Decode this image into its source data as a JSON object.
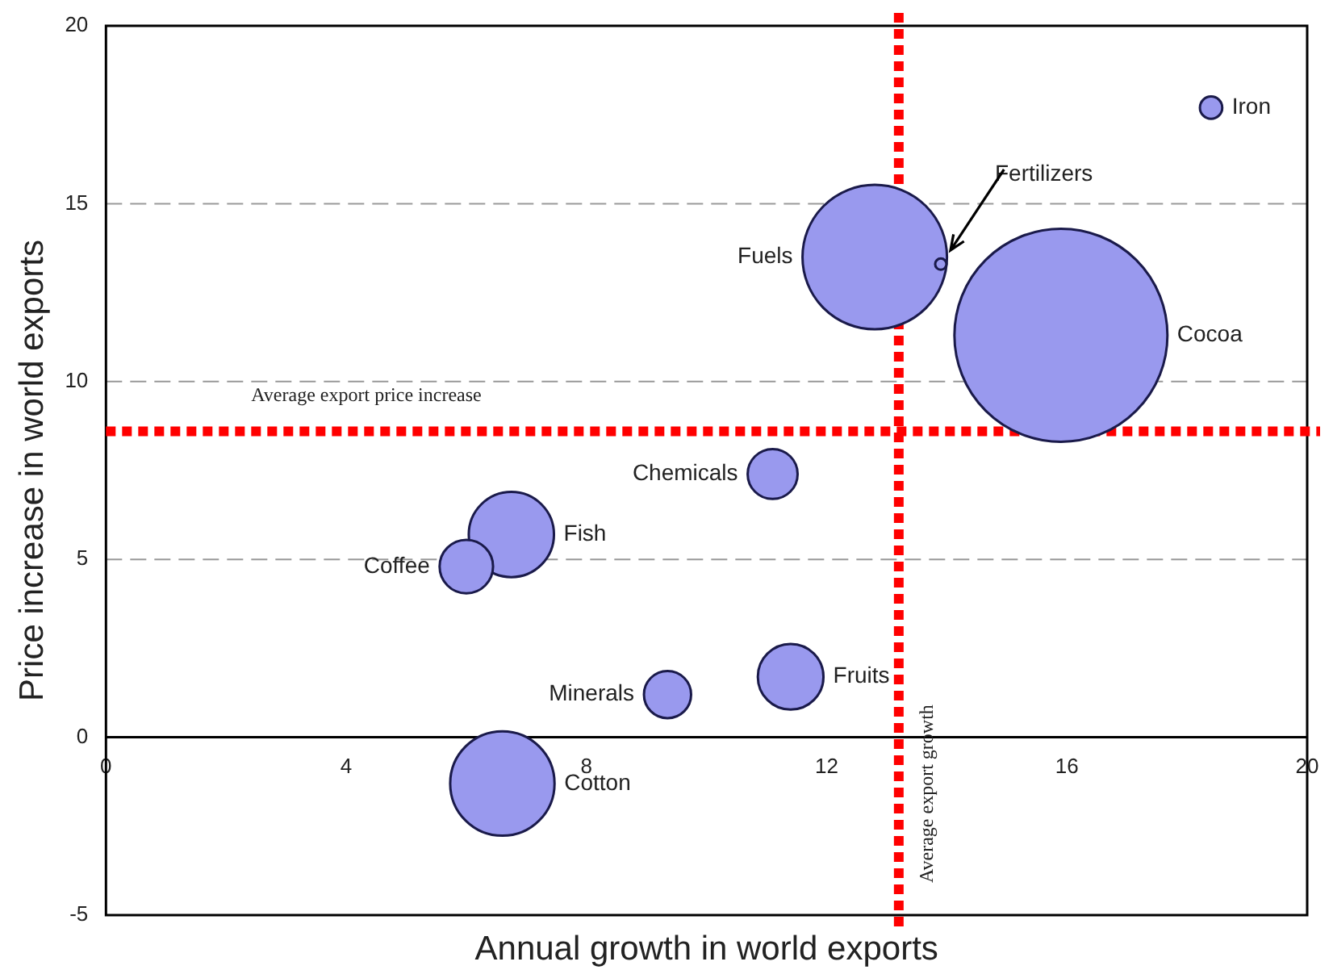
{
  "chart_data": {
    "type": "bubble",
    "xlabel": "Annual growth in world exports",
    "ylabel": "Price increase in world exports",
    "xlim": [
      0,
      20
    ],
    "xticks": [
      0,
      4,
      8,
      12,
      16,
      20
    ],
    "ylim": [
      -5,
      20
    ],
    "yticks": [
      -5,
      0,
      5,
      10,
      15,
      20
    ],
    "grid": "y",
    "legend": false,
    "series": [
      {
        "name": "Iron",
        "color": "#9999ee",
        "x": [
          18.4
        ],
        "values": [
          17.7
        ],
        "sizes": [
          0.011
        ]
      },
      {
        "name": "Fuels",
        "color": "#9999ee",
        "x": [
          12.8
        ],
        "values": [
          13.5
        ],
        "sizes": [
          0.46
        ]
      },
      {
        "name": "Fertilizers",
        "color": "#9999ee",
        "x": [
          13.9
        ],
        "values": [
          13.3
        ],
        "sizes": [
          0.002
        ]
      },
      {
        "name": "Cocoa",
        "color": "#9999ee",
        "x": [
          15.9
        ],
        "values": [
          11.3
        ],
        "sizes": [
          1
        ]
      },
      {
        "name": "Chemicals",
        "color": "#9999ee",
        "x": [
          11.1
        ],
        "values": [
          7.4
        ],
        "sizes": [
          0.055
        ]
      },
      {
        "name": "Fish",
        "color": "#9999ee",
        "x": [
          6.75
        ],
        "values": [
          5.7
        ],
        "sizes": [
          0.16
        ]
      },
      {
        "name": "Coffee",
        "color": "#9999ee",
        "x": [
          6.0
        ],
        "values": [
          4.8
        ],
        "sizes": [
          0.063
        ]
      },
      {
        "name": "Fruits",
        "color": "#9999ee",
        "x": [
          11.4
        ],
        "values": [
          1.7
        ],
        "sizes": [
          0.095
        ]
      },
      {
        "name": "Minerals",
        "color": "#9999ee",
        "x": [
          9.35
        ],
        "values": [
          1.2
        ],
        "sizes": [
          0.049
        ]
      },
      {
        "name": "Cotton",
        "color": "#9999ee",
        "x": [
          6.6
        ],
        "values": [
          -1.3
        ],
        "sizes": [
          0.24
        ]
      }
    ],
    "ref_lines": [
      {
        "axis": "x",
        "value": 13.2,
        "label": "Average export growth",
        "color": "#ff0000",
        "line_style": "dotted"
      },
      {
        "axis": "y",
        "value": 8.6,
        "label": "Average export price increase",
        "color": "#ff0000",
        "line_style": "dotted"
      }
    ]
  }
}
